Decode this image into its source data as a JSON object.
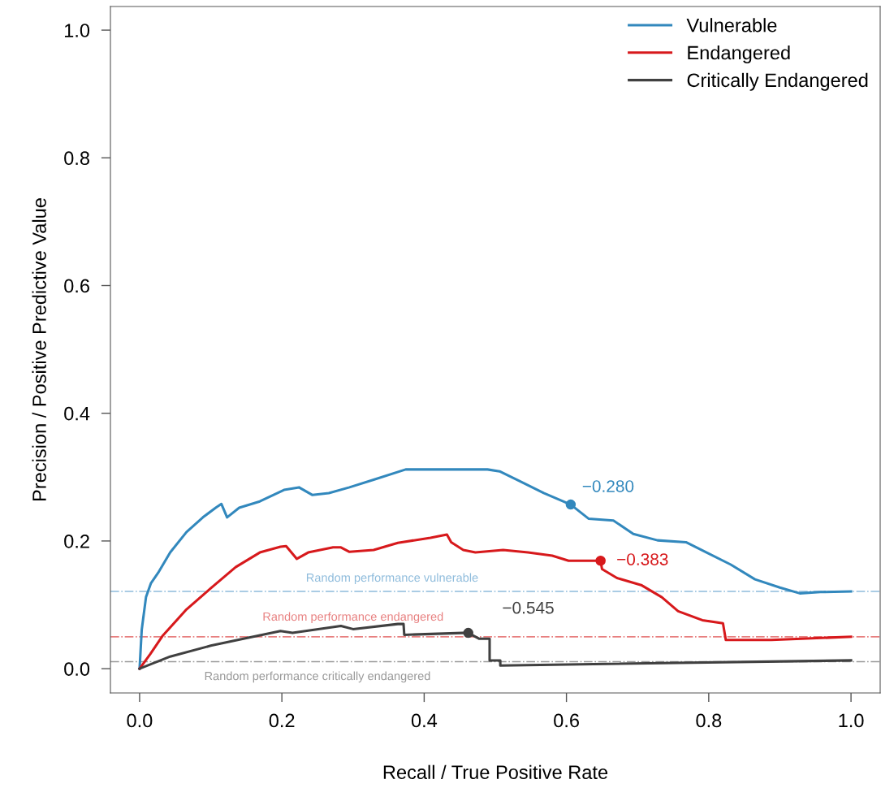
{
  "chart_data": {
    "type": "line",
    "xlabel": "Recall / True Positive Rate",
    "ylabel": "Precision / Positive Predictive Value",
    "xlim": [
      -0.041,
      1.041
    ],
    "ylim": [
      -0.038,
      1.037
    ],
    "xticks": [
      {
        "value": 0,
        "label": "0.0"
      },
      {
        "value": 0.2,
        "label": "0.2"
      },
      {
        "value": 0.4,
        "label": "0.4"
      },
      {
        "value": 0.6,
        "label": "0.6"
      },
      {
        "value": 0.8,
        "label": "0.8"
      },
      {
        "value": 1,
        "label": "1.0"
      }
    ],
    "yticks": [
      {
        "value": 0,
        "label": "0.0"
      },
      {
        "value": 0.2,
        "label": "0.2"
      },
      {
        "value": 0.4,
        "label": "0.4"
      },
      {
        "value": 0.6,
        "label": "0.6"
      },
      {
        "value": 0.8,
        "label": "0.8"
      },
      {
        "value": 1,
        "label": "1.0"
      }
    ],
    "grid": false,
    "legend": "top right",
    "marker": "none",
    "line_style": "solid",
    "series": [
      {
        "name": "Vulnerable",
        "color": "#3288bd",
        "x": [
          0,
          0.003,
          0.009,
          0.016,
          0.026,
          0.043,
          0.066,
          0.089,
          0.107,
          0.115,
          0.123,
          0.14,
          0.169,
          0.203,
          0.224,
          0.243,
          0.266,
          0.295,
          0.329,
          0.374,
          0.42,
          0.466,
          0.489,
          0.506,
          0.534,
          0.568,
          0.606,
          0.631,
          0.666,
          0.694,
          0.728,
          0.768,
          0.797,
          0.831,
          0.865,
          0.9,
          0.928,
          0.957,
          1.0
        ],
        "values": [
          0,
          0.061,
          0.112,
          0.134,
          0.15,
          0.182,
          0.214,
          0.237,
          0.252,
          0.258,
          0.237,
          0.252,
          0.262,
          0.28,
          0.284,
          0.272,
          0.275,
          0.284,
          0.296,
          0.312,
          0.312,
          0.312,
          0.312,
          0.309,
          0.294,
          0.275,
          0.257,
          0.235,
          0.232,
          0.211,
          0.201,
          0.198,
          0.182,
          0.163,
          0.14,
          0.127,
          0.118,
          0.12,
          0.121
        ]
      },
      {
        "name": "Endangered",
        "color": "#d7191c",
        "x": [
          0,
          0.015,
          0.032,
          0.066,
          0.1,
          0.135,
          0.169,
          0.198,
          0.206,
          0.221,
          0.237,
          0.272,
          0.283,
          0.295,
          0.329,
          0.363,
          0.409,
          0.432,
          0.438,
          0.455,
          0.472,
          0.511,
          0.546,
          0.58,
          0.603,
          0.648,
          0.65,
          0.671,
          0.705,
          0.734,
          0.757,
          0.791,
          0.82,
          0.824,
          0.888,
          1.0
        ],
        "values": [
          0,
          0.023,
          0.051,
          0.093,
          0.126,
          0.159,
          0.182,
          0.191,
          0.192,
          0.172,
          0.182,
          0.19,
          0.19,
          0.183,
          0.186,
          0.197,
          0.205,
          0.21,
          0.198,
          0.186,
          0.182,
          0.186,
          0.182,
          0.177,
          0.169,
          0.169,
          0.156,
          0.142,
          0.131,
          0.112,
          0.09,
          0.076,
          0.071,
          0.045,
          0.045,
          0.05
        ]
      },
      {
        "name": "Critically Endangered",
        "color": "#404040",
        "x": [
          0,
          0.043,
          0.1,
          0.146,
          0.198,
          0.215,
          0.283,
          0.3,
          0.363,
          0.371,
          0.372,
          0.454,
          0.462,
          0.477,
          0.492,
          0.492,
          0.507,
          0.507,
          1.0
        ],
        "values": [
          0,
          0.019,
          0.036,
          0.047,
          0.059,
          0.056,
          0.067,
          0.062,
          0.07,
          0.07,
          0.053,
          0.056,
          0.056,
          0.047,
          0.047,
          0.013,
          0.013,
          0.005,
          0.013
        ]
      }
    ],
    "ref_lines": [
      {
        "axis": "y",
        "value": 0.121,
        "label": "Random performance vulnerable",
        "color": "#8fbcdc",
        "line_style": "dashdot"
      },
      {
        "axis": "y",
        "value": 0.05,
        "label": "Random performance endangered",
        "color": "#e88080",
        "line_style": "dashdot"
      },
      {
        "axis": "y",
        "value": 0.011,
        "label": "Random performance critically endangered",
        "color": "#999999",
        "line_style": "dashdot"
      }
    ],
    "annotations": [
      {
        "text": "−0.280",
        "x": 0.606,
        "y": 0.257
      },
      {
        "text": "−0.383",
        "x": 0.648,
        "y": 0.169
      },
      {
        "text": "−0.545",
        "x": 0.462,
        "y": 0.056
      }
    ]
  }
}
